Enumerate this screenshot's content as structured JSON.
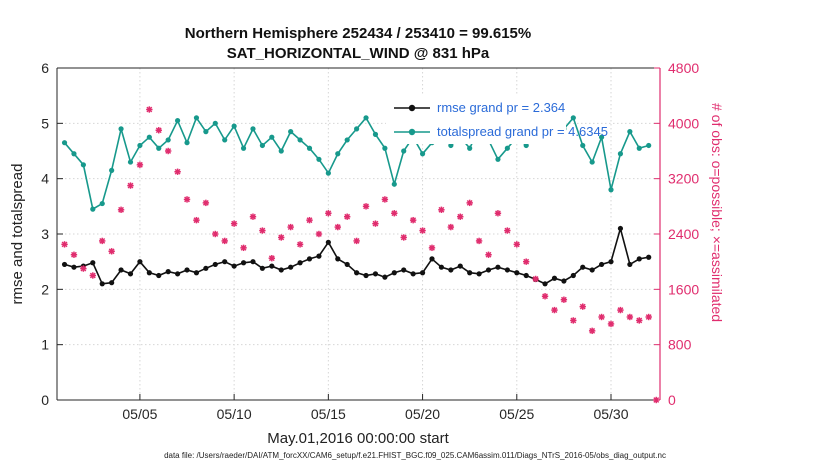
{
  "figure": {
    "title": "Northern Hemisphere 252434 / 253410 = 99.615%",
    "subtitle": "SAT_HORIZONTAL_WIND @ 831 hPa",
    "xlabel": "May.01,2016 00:00:00 start",
    "ylabel_left": "rmse and totalspread",
    "ylabel_right": "# of obs: o=possible; ×=assimilated",
    "caption": "data file: /Users/raeder/DAI/ATM_forcXX/CAM6_setup/f.e21.FHIST_BGC.f09_025.CAM6assim.011/Diags_NTrS_2016-05/obs_diag_output.nc",
    "colors": {
      "legend_text": "#2b6bd8",
      "axis": "#262626",
      "right_axis": "#e02d6e",
      "grid": "#d6d6d6",
      "rmse": "#111111",
      "totalspread": "#17998c",
      "obs": "#e02d6e"
    },
    "legend": [
      {
        "label": "rmse grand pr = 2.364",
        "color": "#111111"
      },
      {
        "label": "totalspread grand pr = 4.6345",
        "color": "#17998c"
      }
    ]
  },
  "chart_data": {
    "type": "line",
    "title": "Northern Hemisphere 252434 / 253410 = 99.615%",
    "subtitle": "SAT_HORIZONTAL_WIND @ 831 hPa",
    "xlabel": "May.01,2016 00:00:00 start",
    "ylabel_left": "rmse and totalspread",
    "ylabel_right": "# of obs: o=possible; ×=assimilated",
    "xlim": [
      0.6,
      32.6
    ],
    "ylim_left": [
      0,
      6
    ],
    "ylim_right": [
      0,
      4800
    ],
    "grid": true,
    "legend_position": "top-center-inside",
    "xticks": [
      {
        "value": 5,
        "label": "05/05"
      },
      {
        "value": 10,
        "label": "05/10"
      },
      {
        "value": 15,
        "label": "05/15"
      },
      {
        "value": 20,
        "label": "05/20"
      },
      {
        "value": 25,
        "label": "05/25"
      },
      {
        "value": 30,
        "label": "05/30"
      }
    ],
    "yticks_left": [
      0,
      1,
      2,
      3,
      4,
      5,
      6
    ],
    "yticks_right": [
      0,
      800,
      1600,
      2400,
      3200,
      4000,
      4800
    ],
    "x": [
      1,
      1.5,
      2,
      2.5,
      3,
      3.5,
      4,
      4.5,
      5,
      5.5,
      6,
      6.5,
      7,
      7.5,
      8,
      8.5,
      9,
      9.5,
      10,
      10.5,
      11,
      11.5,
      12,
      12.5,
      13,
      13.5,
      14,
      14.5,
      15,
      15.5,
      16,
      16.5,
      17,
      17.5,
      18,
      18.5,
      19,
      19.5,
      20,
      20.5,
      21,
      21.5,
      22,
      22.5,
      23,
      23.5,
      24,
      24.5,
      25,
      25.5,
      26,
      26.5,
      27,
      27.5,
      28,
      28.5,
      29,
      29.5,
      30,
      30.5,
      31,
      31.5,
      32
    ],
    "series": [
      {
        "name": "totalspread",
        "axis": "left",
        "color": "#17998c",
        "marker": "circle",
        "kind": "line",
        "grand_mean": 4.6345,
        "values": [
          4.65,
          4.45,
          4.25,
          3.45,
          3.55,
          4.15,
          4.9,
          4.3,
          4.6,
          4.75,
          4.55,
          4.7,
          5.05,
          4.65,
          5.1,
          4.85,
          5.0,
          4.7,
          4.95,
          4.55,
          4.9,
          4.6,
          4.75,
          4.5,
          4.85,
          4.7,
          4.55,
          4.35,
          4.1,
          4.45,
          4.7,
          4.9,
          5.1,
          4.8,
          4.55,
          3.9,
          4.5,
          4.75,
          4.45,
          4.65,
          4.85,
          4.6,
          4.75,
          4.55,
          4.9,
          4.7,
          4.35,
          4.55,
          4.75,
          4.6,
          4.85,
          5.05,
          4.7,
          4.9,
          5.1,
          4.6,
          4.3,
          4.75,
          3.8,
          4.45,
          4.85,
          4.55,
          4.6
        ]
      },
      {
        "name": "rmse",
        "axis": "left",
        "color": "#111111",
        "marker": "circle",
        "kind": "line",
        "grand_mean": 2.364,
        "values": [
          2.45,
          2.4,
          2.42,
          2.48,
          2.1,
          2.12,
          2.35,
          2.28,
          2.5,
          2.3,
          2.25,
          2.32,
          2.28,
          2.35,
          2.3,
          2.38,
          2.45,
          2.5,
          2.42,
          2.48,
          2.5,
          2.38,
          2.42,
          2.35,
          2.4,
          2.48,
          2.55,
          2.6,
          2.85,
          2.55,
          2.45,
          2.3,
          2.25,
          2.28,
          2.22,
          2.3,
          2.35,
          2.28,
          2.3,
          2.55,
          2.4,
          2.35,
          2.42,
          2.3,
          2.28,
          2.35,
          2.4,
          2.35,
          2.3,
          2.25,
          2.18,
          2.1,
          2.2,
          2.15,
          2.25,
          2.4,
          2.35,
          2.45,
          2.5,
          3.1,
          2.45,
          2.55,
          2.58
        ]
      },
      {
        "name": "obs-assimilated",
        "axis": "right",
        "color": "#e02d6e",
        "marker": "asterisk",
        "kind": "scatter",
        "x": [
          1,
          1.5,
          2,
          2.5,
          3,
          3.5,
          4,
          4.5,
          5,
          5.5,
          6,
          6.5,
          7,
          7.5,
          8,
          8.5,
          9,
          9.5,
          10,
          10.5,
          11,
          11.5,
          12,
          12.5,
          13,
          13.5,
          14,
          14.5,
          15,
          15.5,
          16,
          16.5,
          17,
          17.5,
          18,
          18.5,
          19,
          19.5,
          20,
          20.5,
          21,
          21.5,
          22,
          22.5,
          23,
          23.5,
          24,
          24.5,
          25,
          25.5,
          26,
          26.5,
          27,
          27.5,
          28,
          28.5,
          29,
          29.5,
          30,
          30.5,
          31,
          31.5,
          32,
          32.4
        ],
        "values": [
          2250,
          2100,
          1900,
          1800,
          2300,
          2150,
          2750,
          3100,
          3400,
          4200,
          3900,
          3600,
          3300,
          2900,
          2600,
          2850,
          2400,
          2300,
          2550,
          2200,
          2650,
          2450,
          2050,
          2350,
          2500,
          2250,
          2600,
          2400,
          2700,
          2500,
          2650,
          2300,
          2800,
          2550,
          2900,
          2700,
          2350,
          2600,
          2450,
          2200,
          2750,
          2500,
          2650,
          2850,
          2300,
          2100,
          2700,
          2450,
          2250,
          2000,
          1750,
          1500,
          1300,
          1450,
          1150,
          1350,
          1000,
          1200,
          1100,
          1300,
          1200,
          1150,
          1200,
          0
        ]
      }
    ]
  }
}
